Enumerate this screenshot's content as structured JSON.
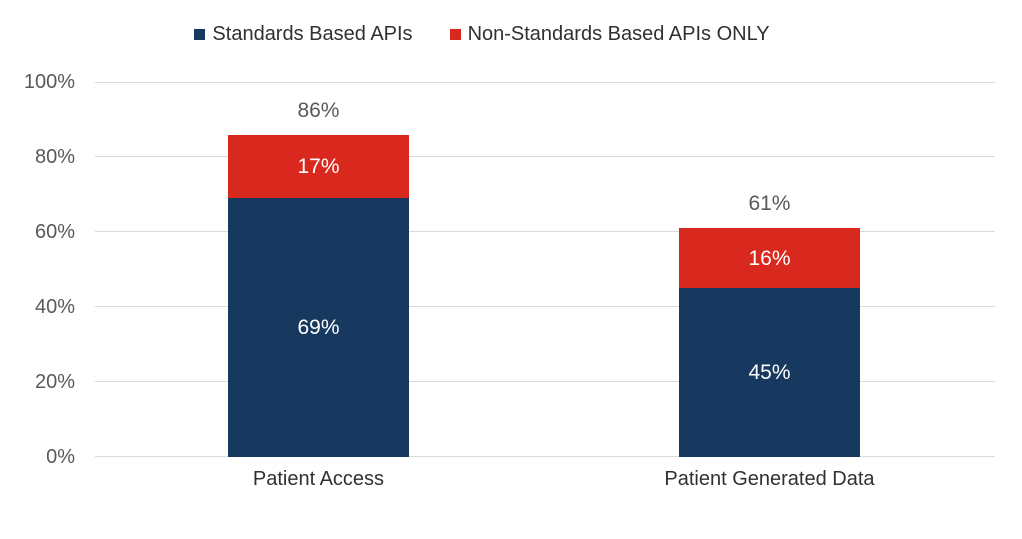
{
  "chart_data": {
    "type": "bar",
    "stacked": true,
    "categories": [
      "Patient Access",
      "Patient Generated Data"
    ],
    "series": [
      {
        "name": "Standards Based APIs",
        "color": "#17395f",
        "values": [
          69,
          45
        ],
        "value_labels": [
          "69%",
          "45%"
        ]
      },
      {
        "name": "Non-Standards Based APIs ONLY",
        "color": "#d9281e",
        "values": [
          17,
          16
        ],
        "value_labels": [
          "17%",
          "16%"
        ]
      }
    ],
    "totals": [
      86,
      61
    ],
    "total_labels": [
      "86%",
      "61%"
    ],
    "y_axis": {
      "min": 0,
      "max": 100,
      "tick_labels": [
        "0%",
        "20%",
        "40%",
        "60%",
        "80%",
        "100%"
      ],
      "gridlines": true,
      "gridline_color": "#d9d9d9"
    },
    "legend_position": "top",
    "text_colors": {
      "axis_ticks": "#595959",
      "totals": "#595959",
      "category_labels": "#303030",
      "segment_labels": "#ffffff"
    }
  }
}
